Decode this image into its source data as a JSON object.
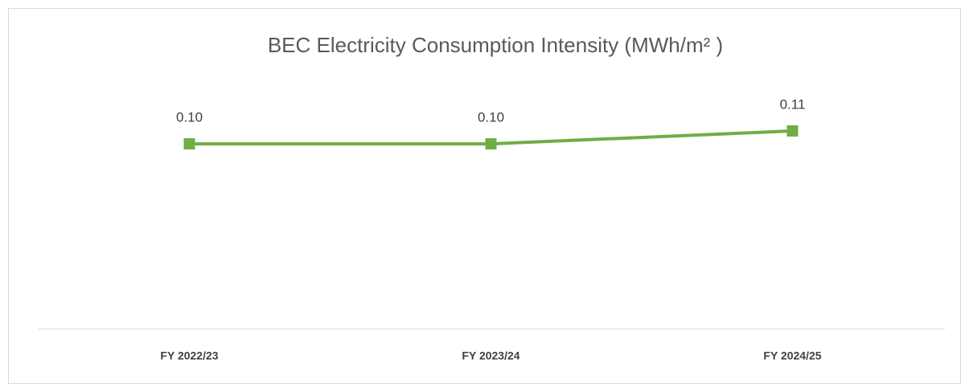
{
  "chart_data": {
    "type": "line",
    "title": "BEC Electricity Consumption Intensity (MWh/m² )",
    "categories": [
      "FY 2022/23",
      "FY 2023/24",
      "FY 2024/25"
    ],
    "series": [
      {
        "color": "#70ad47",
        "values": [
          0.1,
          0.1,
          0.107
        ],
        "value_labels": [
          "0.10",
          "0.10",
          "0.11"
        ]
      }
    ]
  }
}
